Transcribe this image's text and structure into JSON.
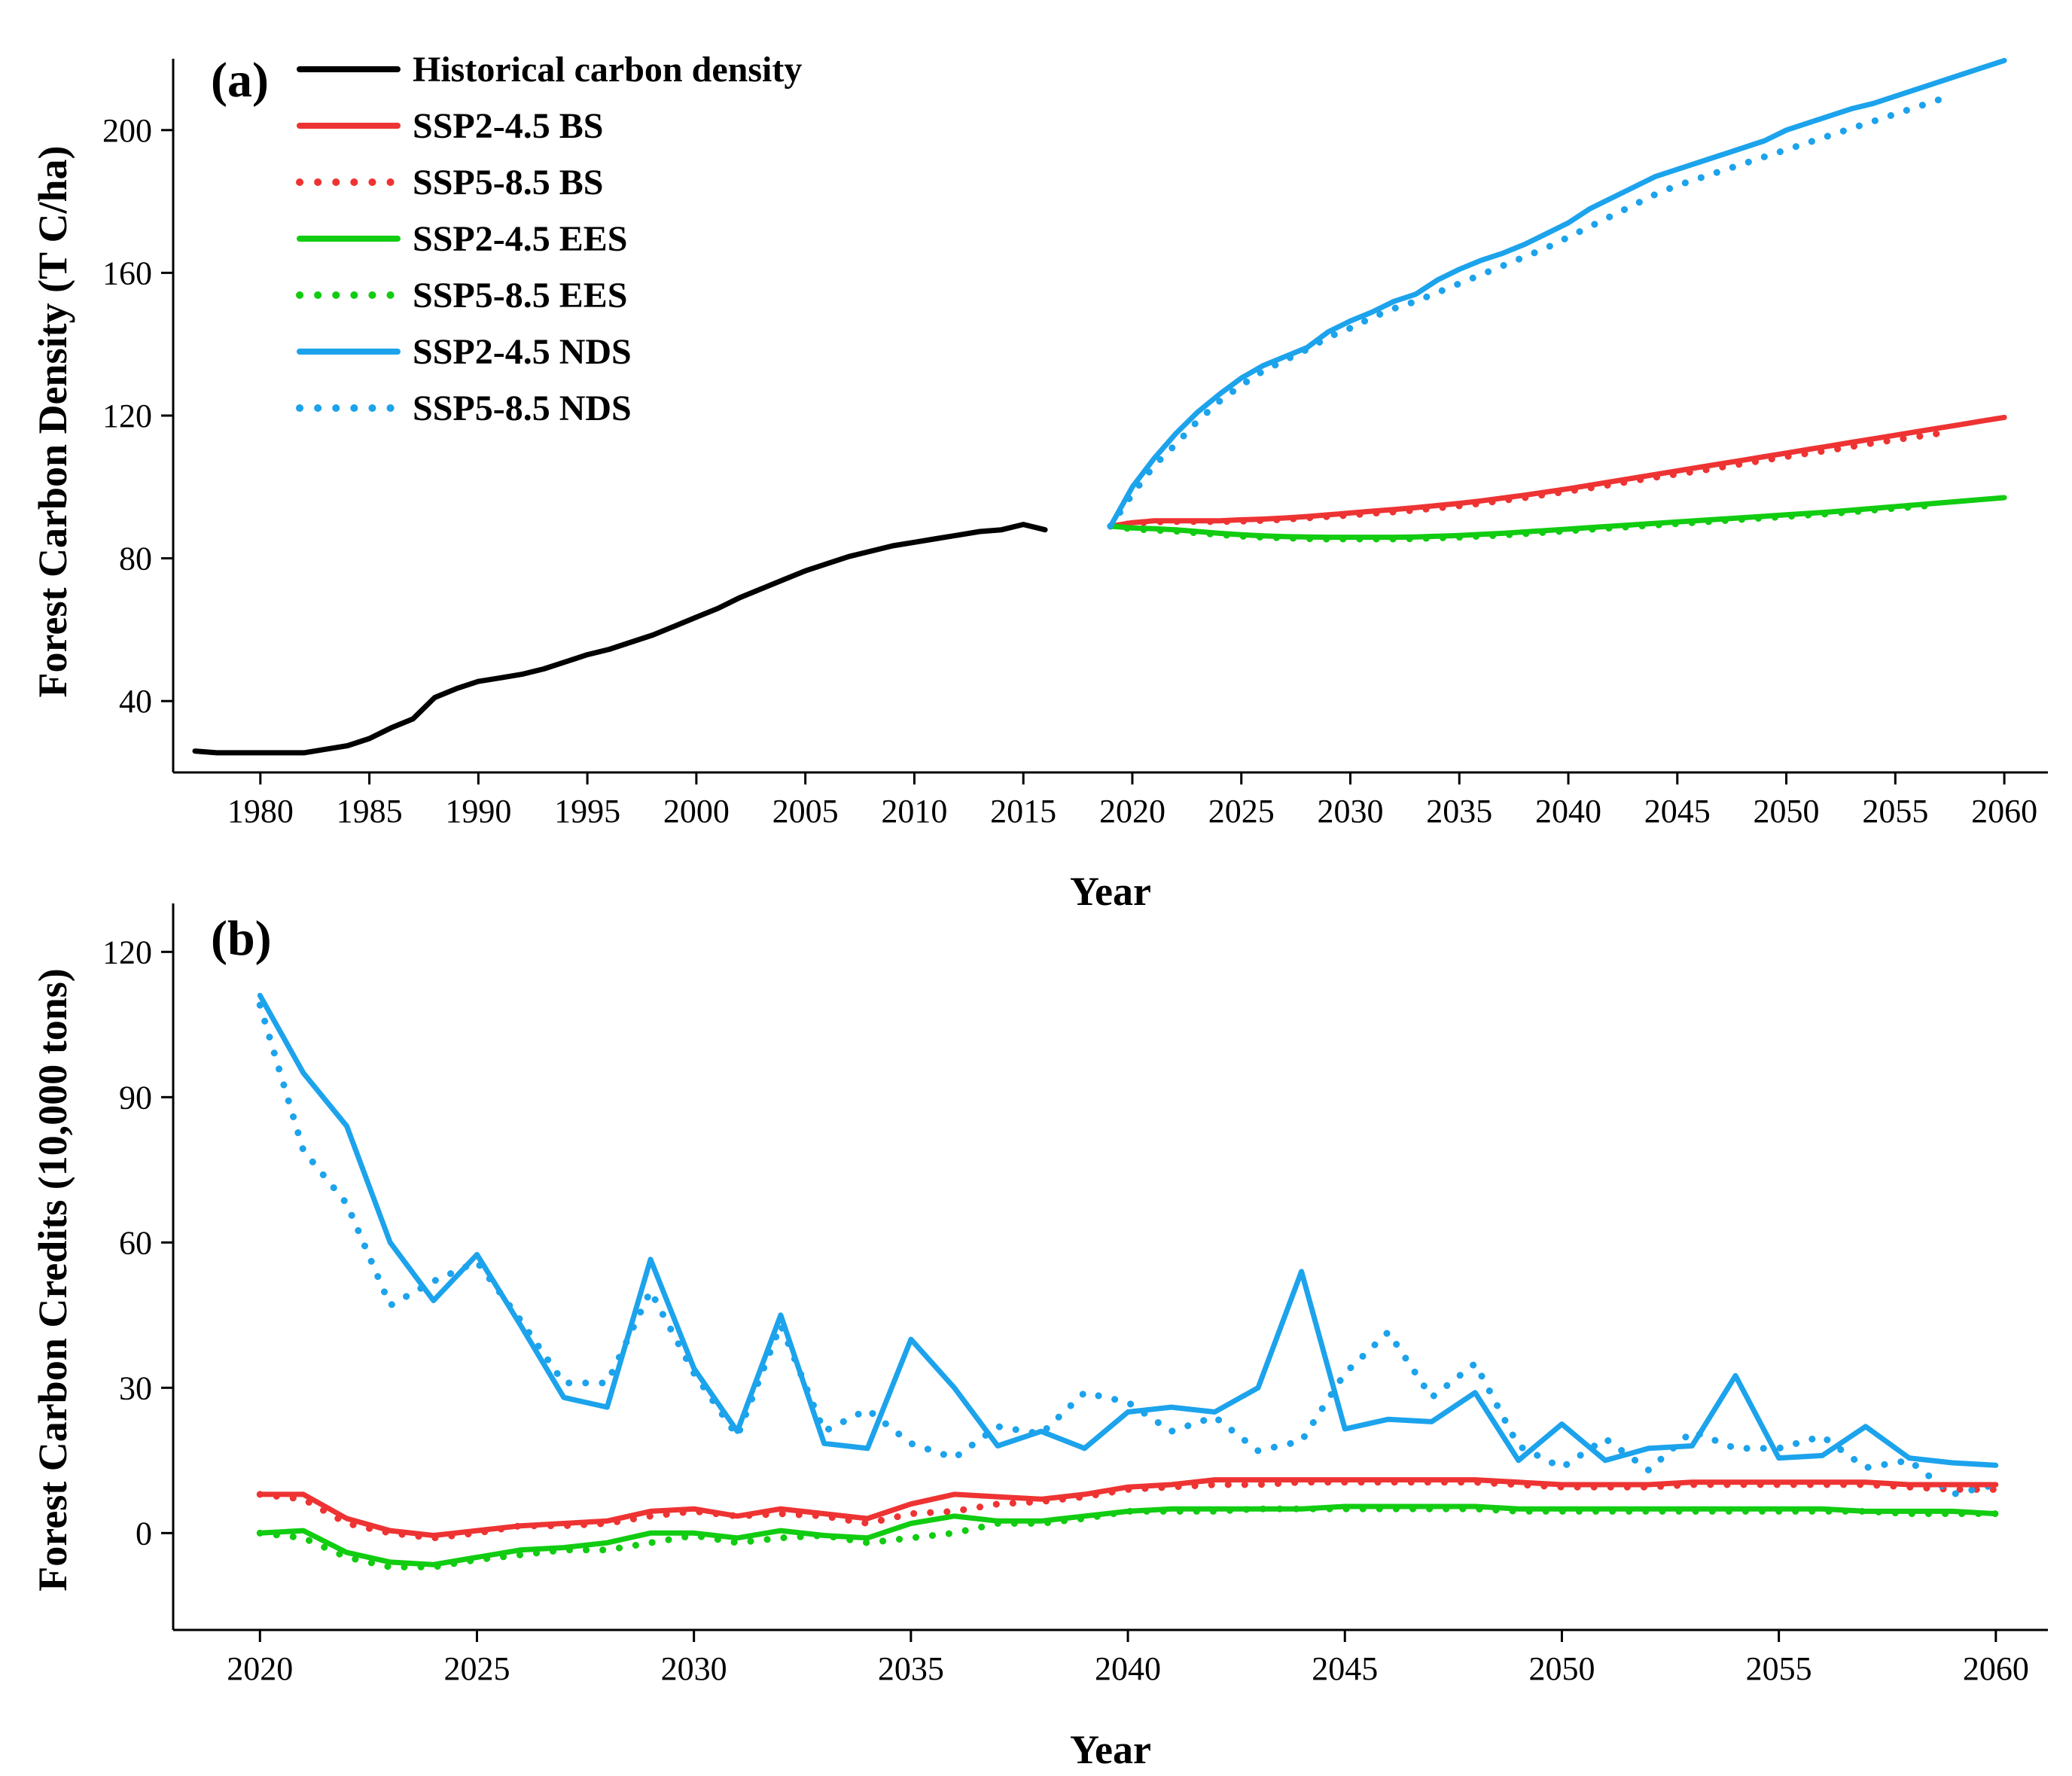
{
  "colors": {
    "historical": "#000000",
    "bs": "#ee3333",
    "ees": "#11cc11",
    "nds": "#1ca3ec"
  },
  "chart_data": [
    {
      "type": "line",
      "panel_label": "(a)",
      "xlabel": "Year",
      "ylabel": "Forest Carbon Density (T C/ha)",
      "xlim": [
        1976,
        2062
      ],
      "ylim": [
        20,
        220
      ],
      "x_ticks": [
        1980,
        1985,
        1990,
        1995,
        2000,
        2005,
        2010,
        2015,
        2020,
        2025,
        2030,
        2035,
        2040,
        2045,
        2050,
        2055,
        2060
      ],
      "x_tick_labels": [
        "1980",
        "1985",
        "1990",
        "1995",
        "2000",
        "2005",
        "2010",
        "2015",
        "2020",
        "2025",
        "2030",
        "2035",
        "2040",
        "2045",
        "2050",
        "2055",
        "2060"
      ],
      "y_ticks": [
        40,
        80,
        120,
        160,
        200
      ],
      "y_tick_labels": [
        "40",
        "80",
        "120",
        "160",
        "200"
      ],
      "legend_position": "top-left",
      "legend": [
        {
          "label": "Historical carbon density",
          "color_key": "historical",
          "dash": "solid"
        },
        {
          "label": "SSP2-4.5 BS",
          "color_key": "bs",
          "dash": "solid"
        },
        {
          "label": "SSP5-8.5 BS",
          "color_key": "bs",
          "dash": "dotted"
        },
        {
          "label": "SSP2-4.5 EES",
          "color_key": "ees",
          "dash": "solid"
        },
        {
          "label": "SSP5-8.5 EES",
          "color_key": "ees",
          "dash": "dotted"
        },
        {
          "label": "SSP2-4.5 NDS",
          "color_key": "nds",
          "dash": "solid"
        },
        {
          "label": "SSP5-8.5 NDS",
          "color_key": "nds",
          "dash": "dotted"
        }
      ],
      "series": [
        {
          "name": "Historical carbon density",
          "color_key": "historical",
          "dash": "solid",
          "x_start": 1977,
          "values": [
            26,
            25.5,
            25.5,
            25.5,
            25.5,
            25.5,
            26.5,
            27.5,
            29.5,
            32.5,
            35,
            41,
            43.5,
            45.5,
            46.5,
            47.5,
            49,
            51,
            53,
            54.5,
            56.5,
            58.5,
            61,
            63.5,
            66,
            69,
            71.5,
            74,
            76.5,
            78.5,
            80.5,
            82,
            83.5,
            84.5,
            85.5,
            86.5,
            87.5,
            88,
            89.5,
            88
          ]
        },
        {
          "name": "SSP2-4.5 BS",
          "color_key": "bs",
          "dash": "solid",
          "x_start": 2019,
          "values": [
            89,
            90,
            90.5,
            90.5,
            90.5,
            90.5,
            90.8,
            91,
            91.3,
            91.7,
            92.2,
            92.7,
            93.2,
            93.7,
            94.2,
            94.8,
            95.4,
            96.1,
            96.9,
            97.7,
            98.6,
            99.5,
            100.5,
            101.5,
            102.5,
            103.5,
            104.5,
            105.5,
            106.5,
            107.5,
            108.5,
            109.5,
            110.5,
            111.5,
            112.5,
            113.5,
            114.5,
            115.5,
            116.5,
            117.5,
            118.5,
            119.5
          ]
        },
        {
          "name": "SSP5-8.5 BS",
          "color_key": "bs",
          "dash": "dotted",
          "x_start": 2019,
          "values": [
            89,
            89.8,
            90.2,
            90.3,
            90.3,
            90.3,
            90.4,
            90.6,
            90.9,
            91.3,
            91.7,
            92.1,
            92.6,
            93,
            93.5,
            94.1,
            94.7,
            95.4,
            96.2,
            97,
            97.9,
            98.8,
            99.7,
            100.7,
            101.7,
            102.7,
            103.6,
            104.5,
            105.5,
            106.5,
            107.5,
            108.5,
            109.4,
            110.3,
            111.3,
            112.3,
            113.2,
            114.1,
            115
          ]
        },
        {
          "name": "SSP2-4.5 EES",
          "color_key": "ees",
          "dash": "solid",
          "x_start": 2019,
          "values": [
            89,
            88.5,
            88.3,
            88,
            87.5,
            87,
            86.6,
            86.3,
            86.1,
            86,
            85.9,
            85.9,
            85.9,
            85.9,
            86,
            86.2,
            86.4,
            86.7,
            87,
            87.4,
            87.8,
            88.2,
            88.6,
            89,
            89.4,
            89.8,
            90.2,
            90.6,
            91,
            91.4,
            91.8,
            92.2,
            92.6,
            93,
            93.5,
            94,
            94.5,
            95,
            95.5,
            96,
            96.5,
            97
          ]
        },
        {
          "name": "SSP5-8.5 EES",
          "color_key": "ees",
          "dash": "dotted",
          "x_start": 2019,
          "values": [
            89,
            88.2,
            87.9,
            87.6,
            87.1,
            86.6,
            86.2,
            85.9,
            85.7,
            85.5,
            85.4,
            85.4,
            85.4,
            85.4,
            85.5,
            85.7,
            85.9,
            86.2,
            86.5,
            86.9,
            87.3,
            87.7,
            88.1,
            88.5,
            88.9,
            89.3,
            89.7,
            90.1,
            90.5,
            90.9,
            91.3,
            91.7,
            92.1,
            92.5,
            93,
            93.5,
            94,
            94.5,
            95
          ]
        },
        {
          "name": "SSP2-4.5 NDS",
          "color_key": "nds",
          "dash": "solid",
          "x_start": 2019,
          "values": [
            89,
            100,
            108,
            115,
            121,
            126,
            130.5,
            134,
            136.5,
            139,
            143.5,
            146.5,
            149,
            152,
            154,
            158,
            161,
            163.5,
            165.5,
            168,
            171,
            174,
            178,
            181,
            184,
            187,
            189,
            191,
            193,
            195,
            197,
            200,
            202,
            204,
            206,
            207.5,
            209.5,
            211.5,
            213.5,
            215.5,
            217.5,
            219.5
          ]
        },
        {
          "name": "SSP5-8.5 NDS",
          "color_key": "nds",
          "dash": "dotted",
          "x_start": 2019,
          "values": [
            89,
            98,
            106,
            112,
            118.5,
            124,
            128.5,
            132.5,
            135.5,
            138.5,
            142,
            144.5,
            147.5,
            150,
            152,
            154.5,
            157,
            159.5,
            162,
            164.5,
            167,
            170,
            173,
            176,
            179,
            182,
            184.5,
            186.5,
            188.5,
            190.5,
            192.5,
            194.5,
            196.5,
            198.5,
            200.5,
            202.5,
            204.5,
            206.5,
            208.5
          ]
        }
      ]
    },
    {
      "type": "line",
      "panel_label": "(b)",
      "xlabel": "Year",
      "ylabel": "Forest Carbon Credits (10,000 tons)",
      "xlim": [
        2018.0,
        2061.2
      ],
      "ylim": [
        -20,
        130
      ],
      "x_ticks": [
        2020,
        2025,
        2030,
        2035,
        2040,
        2045,
        2050,
        2055,
        2060
      ],
      "x_tick_labels": [
        "2020",
        "2025",
        "2030",
        "2035",
        "2040",
        "2045",
        "2050",
        "2055",
        "2060"
      ],
      "y_ticks": [
        0,
        30,
        60,
        90,
        120
      ],
      "y_tick_labels": [
        "0",
        "30",
        "60",
        "90",
        "120"
      ],
      "series": [
        {
          "name": "SSP2-4.5 BS",
          "color_key": "bs",
          "dash": "solid",
          "x_start": 2020,
          "values": [
            8,
            8,
            3,
            0.5,
            -0.5,
            0.5,
            1.5,
            2,
            2.5,
            4.5,
            5,
            3.5,
            5,
            4,
            3,
            6,
            8,
            7.5,
            7,
            8,
            9.5,
            10,
            11,
            11,
            11,
            11,
            11,
            11,
            11,
            10.5,
            10,
            10,
            10,
            10.5,
            10.5,
            10.5,
            10.5,
            10.5,
            10,
            10,
            10
          ]
        },
        {
          "name": "SSP5-8.5 BS",
          "color_key": "bs",
          "dash": "dotted",
          "x_start": 2020,
          "values": [
            8,
            7,
            2,
            0,
            -1,
            0,
            1.5,
            1.5,
            2,
            3.5,
            4.5,
            3.5,
            4,
            3.5,
            2,
            4,
            4.5,
            6,
            6.5,
            7.5,
            9,
            9.5,
            10,
            10,
            10.5,
            10.5,
            10.5,
            10.5,
            10.5,
            10,
            9.5,
            9.5,
            9.5,
            10,
            10,
            10,
            10,
            10,
            9.5,
            9,
            9
          ]
        },
        {
          "name": "SSP2-4.5 EES",
          "color_key": "ees",
          "dash": "solid",
          "x_start": 2020,
          "values": [
            0,
            0.5,
            -4,
            -6,
            -6.5,
            -5,
            -3.5,
            -3,
            -2,
            0,
            0,
            -1,
            0.5,
            -0.5,
            -1,
            2,
            3.5,
            2.5,
            2.5,
            3.5,
            4.5,
            5,
            5,
            5,
            5,
            5.5,
            5.5,
            5.5,
            5.5,
            5,
            5,
            5,
            5,
            5,
            5,
            5,
            5,
            4.5,
            4.5,
            4.5,
            4
          ]
        },
        {
          "name": "SSP5-8.5 EES",
          "color_key": "ees",
          "dash": "dotted",
          "x_start": 2020,
          "values": [
            0,
            -1,
            -5,
            -7,
            -7,
            -5.5,
            -4.5,
            -3.5,
            -3.5,
            -2,
            -0.5,
            -2,
            -1,
            -0.5,
            -2,
            -1,
            0,
            2,
            2,
            3,
            4.5,
            4.5,
            4.5,
            5,
            5,
            5,
            5,
            5,
            5,
            4.5,
            4.5,
            4.5,
            4.5,
            4.5,
            4.5,
            4.5,
            4.5,
            4.5,
            4,
            4,
            4
          ]
        },
        {
          "name": "SSP2-4.5 NDS",
          "color_key": "nds",
          "dash": "solid",
          "x_start": 2020,
          "values": [
            111,
            95,
            84,
            60,
            48,
            57.5,
            43,
            28,
            26,
            56.5,
            34,
            21,
            45,
            18.5,
            17.5,
            40,
            30,
            18,
            21,
            17.5,
            25,
            26,
            25,
            30,
            54,
            21.5,
            23.5,
            23,
            29,
            15,
            22.5,
            15,
            17.5,
            18,
            32.5,
            15.5,
            16,
            22,
            15.5,
            14.5,
            14
          ]
        },
        {
          "name": "SSP5-8.5 NDS",
          "color_key": "nds",
          "dash": "dotted",
          "x_start": 2020,
          "values": [
            109,
            79,
            68,
            47,
            52,
            56,
            44,
            31,
            31,
            50,
            33,
            20,
            43,
            21,
            25.5,
            18.5,
            15.5,
            22,
            20.5,
            29,
            27,
            21,
            24,
            17,
            19,
            33,
            41.5,
            28,
            35,
            18,
            13.5,
            19.5,
            13,
            21,
            17.5,
            17.5,
            20,
            13.5,
            15,
            8,
            10
          ]
        }
      ]
    }
  ]
}
